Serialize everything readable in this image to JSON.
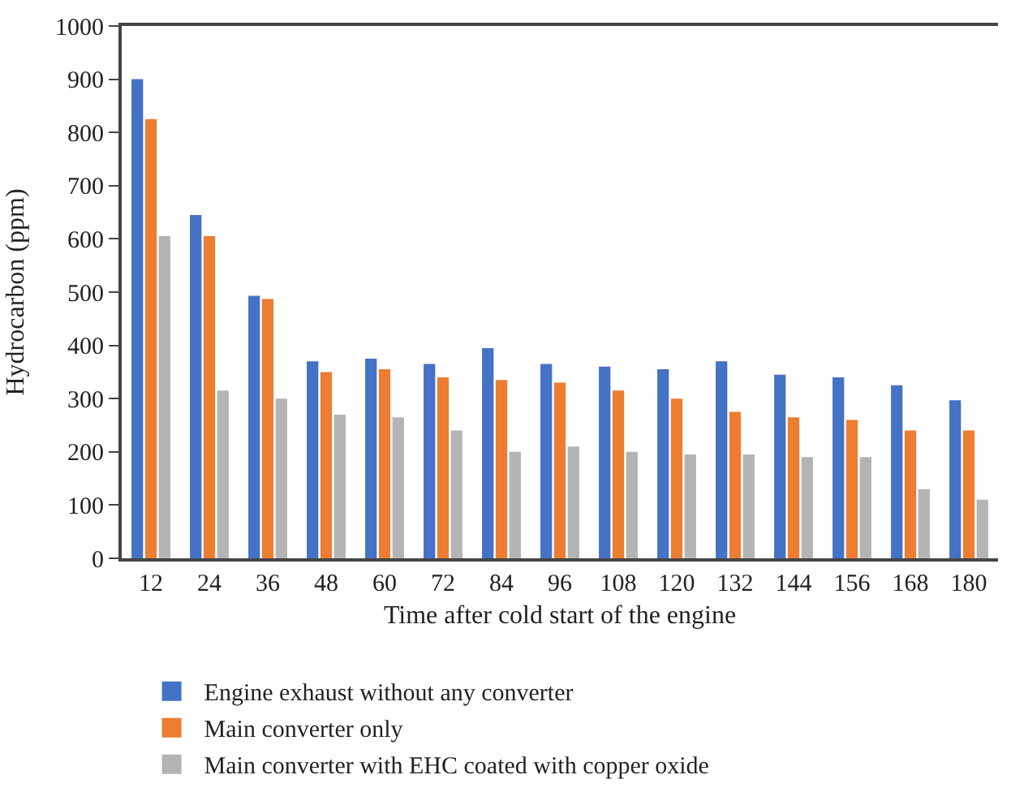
{
  "chart_data": {
    "type": "bar",
    "xlabel": "Time after cold start of the engine",
    "ylabel": "Hydrocarbon (ppm)",
    "categories": [
      "12",
      "24",
      "36",
      "48",
      "60",
      "72",
      "84",
      "96",
      "108",
      "120",
      "132",
      "144",
      "156",
      "168",
      "180"
    ],
    "series": [
      {
        "name": "Engine exhaust without any converter",
        "color": "#4472c4",
        "values": [
          900,
          645,
          493,
          370,
          375,
          365,
          395,
          365,
          360,
          355,
          370,
          345,
          340,
          325,
          297
        ]
      },
      {
        "name": "Main converter only",
        "color": "#ed7d31",
        "values": [
          825,
          605,
          487,
          350,
          355,
          340,
          335,
          330,
          315,
          300,
          275,
          265,
          260,
          240,
          240
        ]
      },
      {
        "name": "Main converter with EHC coated with copper oxide",
        "color": "#b4b4b4",
        "values": [
          605,
          315,
          300,
          270,
          265,
          240,
          200,
          210,
          200,
          195,
          195,
          190,
          190,
          130,
          110
        ]
      }
    ],
    "ylim": [
      0,
      1000
    ],
    "yticks": [
      0,
      100,
      200,
      300,
      400,
      500,
      600,
      700,
      800,
      900,
      1000
    ],
    "grid": false,
    "legend": "bottom"
  }
}
